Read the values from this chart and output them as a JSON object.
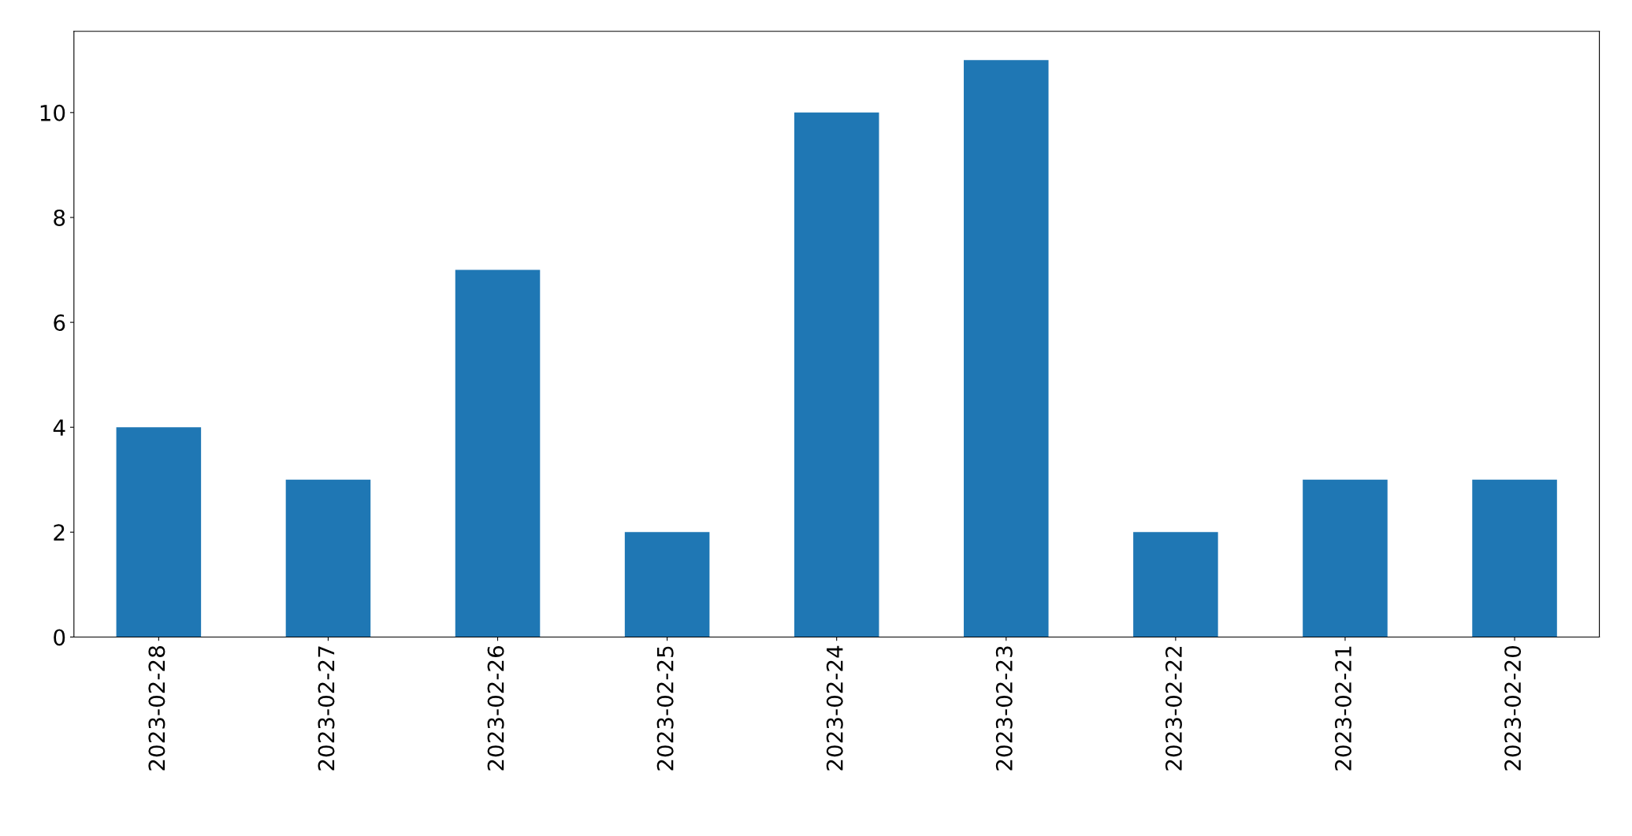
{
  "chart_data": {
    "type": "bar",
    "categories": [
      "2023-02-28",
      "2023-02-27",
      "2023-02-26",
      "2023-02-25",
      "2023-02-24",
      "2023-02-23",
      "2023-02-22",
      "2023-02-21",
      "2023-02-20"
    ],
    "values": [
      4,
      3,
      7,
      2,
      10,
      11,
      2,
      3,
      3
    ],
    "color": "#1f77b4",
    "ylim": [
      0,
      11.55
    ],
    "yticks": [
      0,
      2,
      4,
      6,
      8,
      10
    ],
    "grid": false,
    "legend": false
  }
}
